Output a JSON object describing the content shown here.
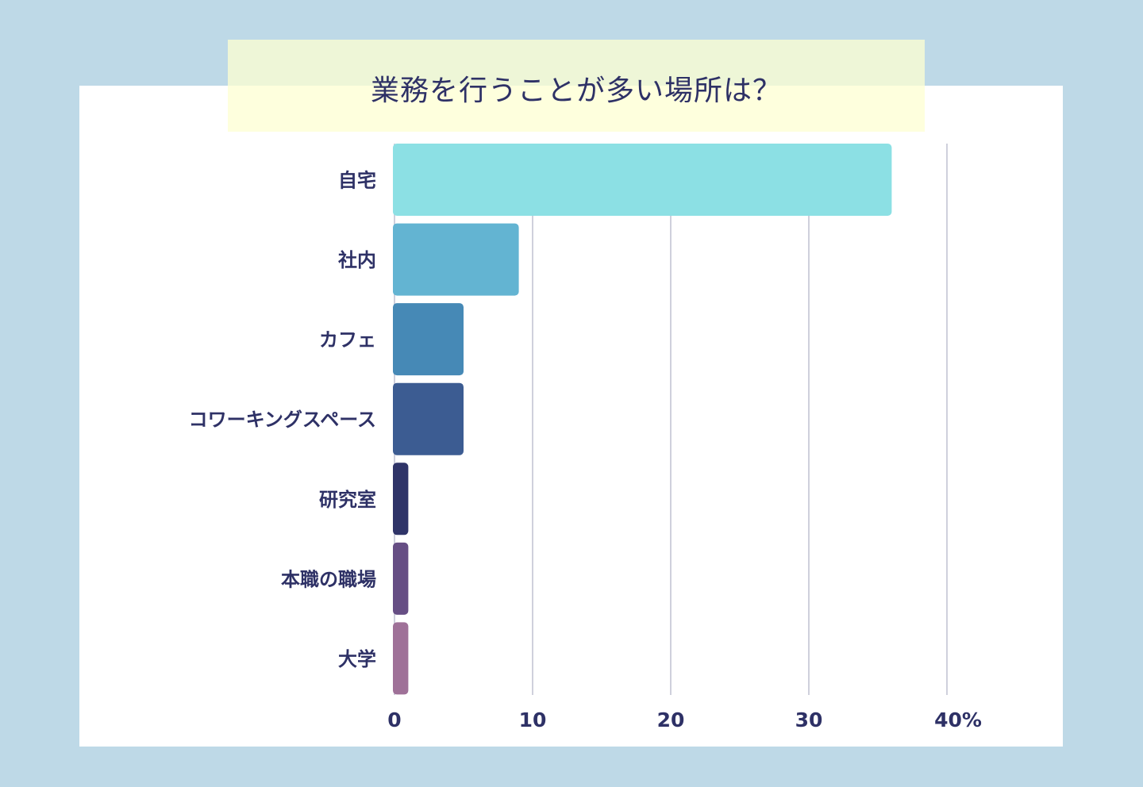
{
  "chart_data": {
    "type": "bar",
    "orientation": "horizontal",
    "title": "業務を行うことが多い場所は？",
    "categories": [
      "自宅",
      "社内",
      "カフェ",
      "コワーキングスペース",
      "研究室",
      "本職の職場",
      "大学"
    ],
    "values": [
      36,
      9,
      5,
      5,
      1,
      1,
      1
    ],
    "colors": [
      "#8ce0e4",
      "#63b4d2",
      "#4689b6",
      "#3c5c92",
      "#2f3468",
      "#664e84",
      "#9f7198"
    ],
    "xlim": [
      0,
      40
    ],
    "xticks": [
      0,
      10,
      20,
      30,
      40
    ],
    "xtick_labels": [
      "0",
      "10",
      "20",
      "30",
      "40%"
    ],
    "xlabel": "",
    "ylabel": "",
    "grid": "vertical"
  }
}
